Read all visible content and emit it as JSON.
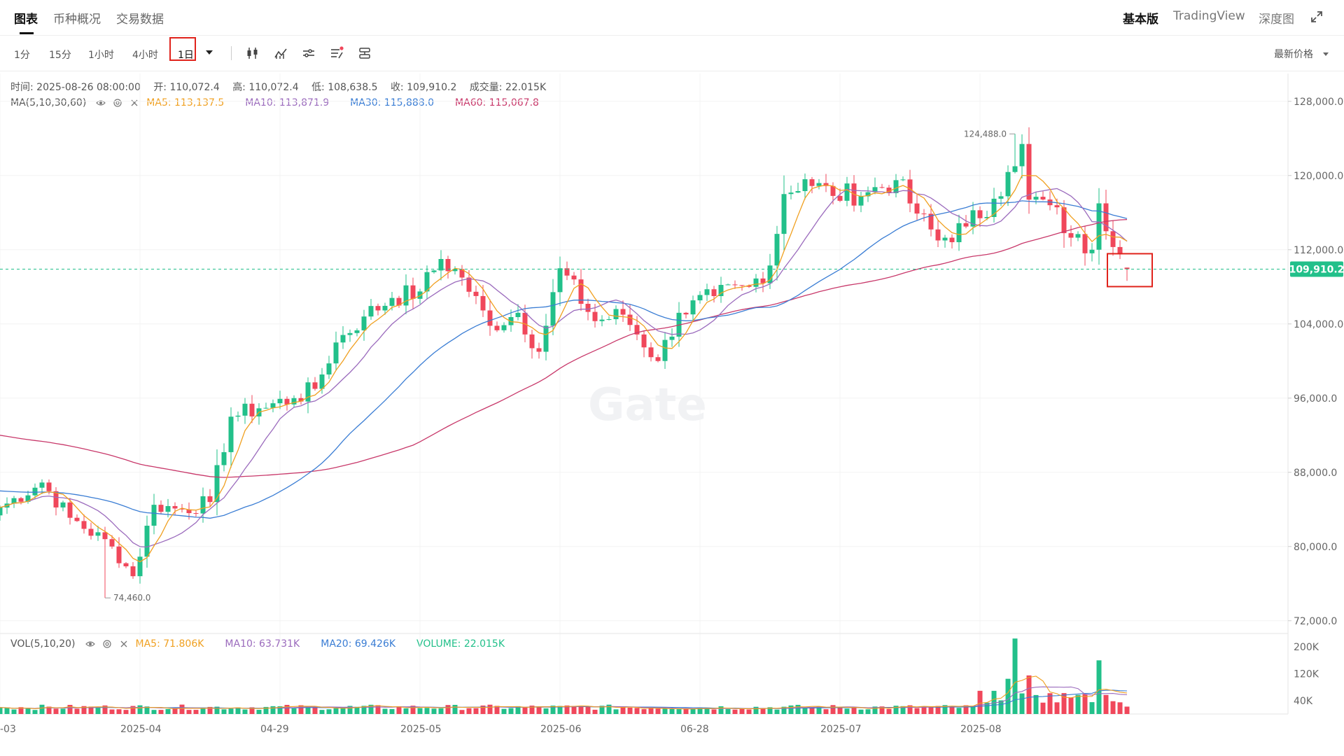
{
  "tabs": [
    {
      "label": "图表",
      "active": true
    },
    {
      "label": "币种概况",
      "active": false
    },
    {
      "label": "交易数据",
      "active": false
    }
  ],
  "right_tabs": [
    {
      "label": "基本版",
      "active": true
    },
    {
      "label": "TradingView",
      "active": false
    },
    {
      "label": "深度图",
      "active": false
    }
  ],
  "intervals": [
    {
      "label": "1分"
    },
    {
      "label": "15分"
    },
    {
      "label": "1小时"
    },
    {
      "label": "4小时"
    },
    {
      "label": "1日",
      "selected": true
    }
  ],
  "price_type": "最新价格",
  "ohlc": {
    "time": "时间: 2025-08-26 08:00:00",
    "open": "开: 110,072.4",
    "high": "高: 110,072.4",
    "low": "低: 108,638.5",
    "close": "收: 109,910.2",
    "volume": "成交量: 22.015K"
  },
  "ma_legend": {
    "title": "MA(5,10,30,60)",
    "items": [
      {
        "text": "MA5: 113,137.5",
        "color": "#f0a020"
      },
      {
        "text": "MA10: 113,871.9",
        "color": "#9b6bbd"
      },
      {
        "text": "MA30: 115,888.0",
        "color": "#3a7dd4"
      },
      {
        "text": "MA60: 115,067.8",
        "color": "#c8386a"
      }
    ]
  },
  "vol_legend": {
    "title": "VOL(5,10,20)",
    "items": [
      {
        "text": "MA5: 71.806K",
        "color": "#f0a020"
      },
      {
        "text": "MA10: 63.731K",
        "color": "#9b6bbd"
      },
      {
        "text": "MA20: 69.426K",
        "color": "#3a7dd4"
      },
      {
        "text": "VOLUME: 22.015K",
        "color": "#22c08a"
      }
    ]
  },
  "watermark": "Gate",
  "colors": {
    "up": "#22c08a",
    "down": "#f0475b",
    "ma5": "#f0a020",
    "ma10": "#9b6bbd",
    "ma30": "#3a7dd4",
    "ma60": "#c8386a",
    "highlight": "#e0231c"
  },
  "chart_data": {
    "type": "candlestick",
    "last_price": 109910.2,
    "last_price_label": "109,910.2",
    "high_marker": {
      "value": 124488.0,
      "label": "124,488.0"
    },
    "low_marker": {
      "value": 74460.0,
      "label": "74,460.0"
    },
    "y_ticks": [
      "128,000.0",
      "120,000.0",
      "112,000.0",
      "104,000.0",
      "96,000.0",
      "88,000.0",
      "80,000.0",
      "72,000.0"
    ],
    "y_tick_values": [
      128000,
      120000,
      112000,
      104000,
      96000,
      88000,
      80000,
      72000
    ],
    "y_range": [
      71000,
      131000
    ],
    "vol_ticks": [
      "200K",
      "120K",
      "40K"
    ],
    "vol_tick_values": [
      200000,
      120000,
      40000
    ],
    "x_labels": [
      "-03",
      "2025-04",
      "04-29",
      "2025-05",
      "2025-06",
      "06-28",
      "2025-07",
      "2025-08"
    ],
    "x_label_indices": [
      0,
      20,
      40,
      60,
      80,
      100,
      120,
      140
    ],
    "key_closes": [
      [
        0,
        84200
      ],
      [
        6,
        86900
      ],
      [
        10,
        83100
      ],
      [
        16,
        80000
      ],
      [
        19,
        76800
      ],
      [
        22,
        84500
      ],
      [
        26,
        84000
      ],
      [
        30,
        84800
      ],
      [
        33,
        94000
      ],
      [
        37,
        94900
      ],
      [
        42,
        96000
      ],
      [
        45,
        97000
      ],
      [
        48,
        102000
      ],
      [
        52,
        104800
      ],
      [
        56,
        106800
      ],
      [
        60,
        107500
      ],
      [
        63,
        111000
      ],
      [
        66,
        109000
      ],
      [
        70,
        103800
      ],
      [
        74,
        105200
      ],
      [
        77,
        101000
      ],
      [
        80,
        110000
      ],
      [
        85,
        104300
      ],
      [
        89,
        105000
      ],
      [
        94,
        100000
      ],
      [
        97,
        105200
      ],
      [
        102,
        107000
      ],
      [
        107,
        108000
      ],
      [
        110,
        110300
      ],
      [
        112,
        118000
      ],
      [
        115,
        119600
      ],
      [
        119,
        117800
      ],
      [
        124,
        118200
      ],
      [
        128,
        119500
      ],
      [
        131,
        115900
      ],
      [
        134,
        113000
      ],
      [
        138,
        114500
      ],
      [
        142,
        117500
      ],
      [
        145,
        121000
      ],
      [
        146,
        123400
      ],
      [
        147,
        117400
      ],
      [
        150,
        116800
      ],
      [
        153,
        113300
      ],
      [
        156,
        112000
      ],
      [
        157,
        117000
      ],
      [
        160,
        111500
      ],
      [
        161,
        109900
      ]
    ],
    "volume_peaks": [
      {
        "index": 144,
        "value": 105000
      },
      {
        "index": 145,
        "value": 225000
      },
      {
        "index": 147,
        "value": 115000
      },
      {
        "index": 157,
        "value": 160000
      }
    ]
  }
}
